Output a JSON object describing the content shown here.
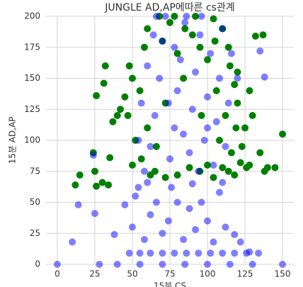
{
  "chart_data": {
    "type": "scatter",
    "title": "JUNGLE AD,AP에따른 cs관계",
    "x_label": "15분 CS",
    "y_label": "15분 AD,AP",
    "xlim": [
      -7.5,
      157.5
    ],
    "xticks": [
      0,
      25,
      50,
      75,
      100,
      125,
      150
    ],
    "ylim": [
      0,
      200
    ],
    "yticks": [
      0,
      25,
      50,
      75,
      100,
      125,
      150,
      175,
      200
    ],
    "grid": true,
    "series": [
      {
        "color": "#008000",
        "opacity": 1,
        "x": [
          12,
          15,
          24,
          26,
          26,
          25,
          30,
          31,
          32,
          34,
          35,
          37,
          40,
          42,
          150,
          140,
          145,
          137,
          132,
          120,
          128,
          135,
          138,
          125,
          130,
          50,
          55,
          48,
          60,
          65,
          70,
          75,
          80,
          85,
          90,
          95,
          100,
          105,
          110,
          115,
          118,
          120,
          112,
          108,
          116,
          122,
          126,
          110,
          100,
          95,
          88,
          80,
          72,
          62,
          56,
          52,
          47,
          45,
          50,
          58,
          68,
          78,
          92,
          104,
          114,
          119,
          123,
          128,
          106,
          60,
          66,
          72,
          84,
          96,
          104,
          114,
          118
        ],
        "values": [
          64,
          72,
          90,
          63,
          136,
          75,
          66,
          146,
          160,
          64,
          86,
          115,
          120,
          125,
          105,
          78,
          78,
          185,
          184,
          155,
          140,
          90,
          75,
          110,
          120,
          80,
          140,
          160,
          190,
          75,
          180,
          195,
          170,
          190,
          185,
          175,
          165,
          180,
          190,
          160,
          145,
          130,
          120,
          100,
          90,
          82,
          78,
          78,
          80,
          75,
          78,
          72,
          70,
          72,
          85,
          100,
          120,
          135,
          150,
          175,
          200,
          200,
          200,
          198,
          175,
          110,
          95,
          80,
          140,
          110,
          95,
          130,
          150,
          120,
          70,
          75,
          72
        ]
      },
      {
        "color": "#0000ff",
        "opacity": 0.5,
        "x": [
          0,
          28,
          40,
          55,
          70,
          85,
          100,
          115,
          130,
          150,
          48,
          55,
          62,
          70,
          78,
          86,
          94,
          102,
          110,
          118,
          126,
          134,
          10,
          14,
          25,
          24,
          38,
          45,
          50,
          52,
          58,
          62,
          66,
          70,
          74,
          80,
          84,
          88,
          92,
          96,
          100,
          104,
          108,
          112,
          118,
          122,
          128,
          54,
          60,
          76,
          90,
          110,
          58,
          62,
          65,
          68,
          70,
          72,
          75,
          78,
          80,
          82,
          85,
          88,
          90,
          92,
          95,
          98,
          100,
          102,
          104,
          106,
          108,
          110,
          112,
          60,
          64,
          74,
          84,
          94,
          114,
          116,
          86,
          96,
          66,
          78,
          100,
          120,
          138,
          135,
          56,
          54
        ],
        "values": [
          0,
          0,
          0,
          0,
          0,
          0,
          0,
          0,
          0,
          0,
          9,
          9,
          9,
          9,
          9,
          9,
          9,
          9,
          9,
          9,
          9,
          9,
          18,
          48,
          41,
          88,
          24,
          48,
          30,
          55,
          20,
          40,
          50,
          25,
          35,
          50,
          20,
          45,
          28,
          50,
          35,
          18,
          58,
          30,
          24,
          18,
          10,
          62,
          66,
          62,
          65,
          66,
          75,
          95,
          120,
          150,
          180,
          200,
          85,
          110,
          140,
          165,
          195,
          90,
          125,
          155,
          185,
          100,
          135,
          170,
          80,
          115,
          150,
          190,
          95,
          160,
          185,
          130,
          105,
          75,
          130,
          170,
          200,
          200,
          200,
          175,
          110,
          150,
          151,
          172,
          130,
          100
        ]
      }
    ]
  }
}
